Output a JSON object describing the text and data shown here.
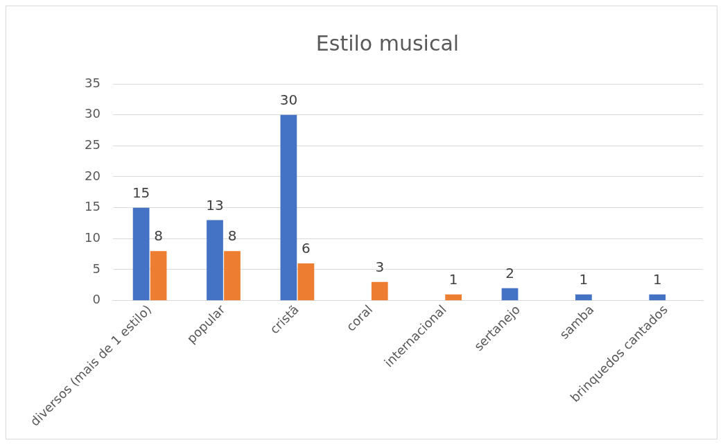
{
  "chart_data": {
    "type": "bar",
    "title": "Estilo musical",
    "categories": [
      "diversos (mais de 1 estilo)",
      "popular",
      "cristã",
      "coral",
      "internacional",
      "sertanejo",
      "samba",
      "brinquedos cantados"
    ],
    "series": [
      {
        "color": "#4472c4",
        "values": [
          15,
          13,
          30,
          null,
          null,
          2,
          1,
          1
        ]
      },
      {
        "color": "#ed7d31",
        "values": [
          8,
          8,
          6,
          3,
          1,
          null,
          null,
          null
        ]
      }
    ],
    "ylim": [
      0,
      35
    ],
    "yticks": [
      0,
      5,
      10,
      15,
      20,
      25,
      30,
      35
    ],
    "grid": "y",
    "legend": false,
    "data_labels": true
  }
}
